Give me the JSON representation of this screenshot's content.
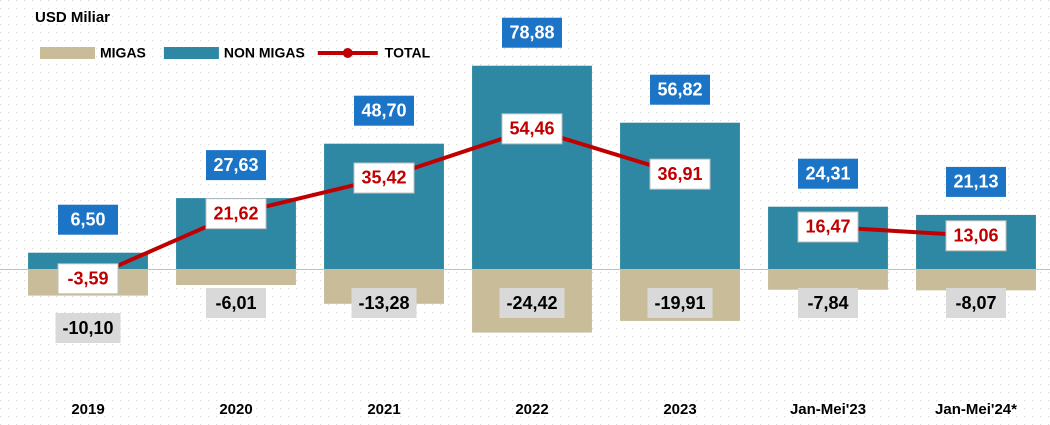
{
  "chart_data": {
    "type": "bar-line",
    "title": "USD Miliar",
    "categories": [
      "2019",
      "2020",
      "2021",
      "2022",
      "2023",
      "Jan-Mei'23",
      "Jan-Mei'24*"
    ],
    "ylim": [
      -30,
      90
    ],
    "line_breaks_after": [
      4
    ],
    "series": [
      {
        "name": "MIGAS",
        "type": "bar",
        "color": "#c8bd98",
        "label_color": "#d9d9d9",
        "values": [
          -10.1,
          -6.01,
          -13.28,
          -24.42,
          -19.91,
          -7.84,
          -8.07
        ],
        "value_labels": [
          "-10,10",
          "-6,01",
          "-13,28",
          "-24,42",
          "-19,91",
          "-7,84",
          "-8,07"
        ]
      },
      {
        "name": "NON MIGAS",
        "type": "bar",
        "color": "#2e88a4",
        "label_color": "#1b74c5",
        "values": [
          6.5,
          27.63,
          48.7,
          78.88,
          56.82,
          24.31,
          21.13
        ],
        "value_labels": [
          "6,50",
          "27,63",
          "48,70",
          "78,88",
          "56,82",
          "24,31",
          "21,13"
        ]
      },
      {
        "name": "TOTAL",
        "type": "line",
        "color": "#c00000",
        "values": [
          -3.59,
          21.62,
          35.42,
          54.46,
          36.91,
          16.47,
          13.06
        ],
        "value_labels": [
          "-3,59",
          "21,62",
          "35,42",
          "54,46",
          "36,91",
          "16,47",
          "13,06"
        ]
      }
    ]
  }
}
